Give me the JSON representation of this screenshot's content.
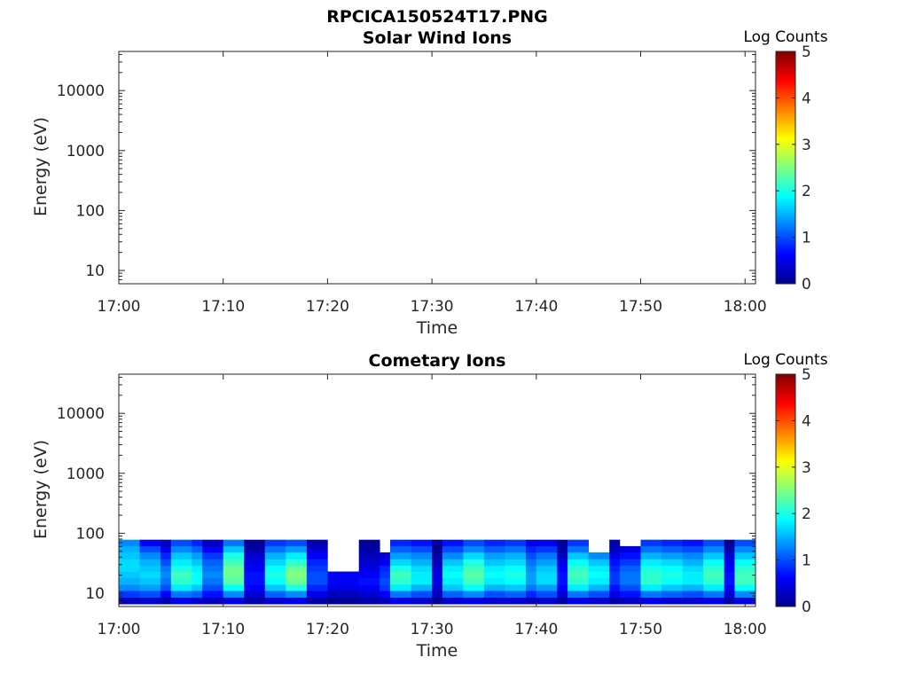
{
  "figure": {
    "title": "RPCICA150524T17.PNG"
  },
  "chart_data": [
    {
      "type": "heatmap",
      "title": "Solar Wind Ions",
      "xlabel": "Time",
      "ylabel": "Energy (eV)",
      "x_ticks": [
        "17:00",
        "17:10",
        "17:20",
        "17:30",
        "17:40",
        "17:50",
        "18:00"
      ],
      "x_range": [
        "17:00",
        "18:01"
      ],
      "y_ticks": [
        "10",
        "100",
        "1000",
        "10000"
      ],
      "y_scale": "log",
      "y_range": [
        6,
        45000
      ],
      "colorbar": {
        "label": "Log Counts",
        "ticks": [
          "0",
          "1",
          "2",
          "3",
          "4",
          "5"
        ],
        "range": [
          0,
          5
        ],
        "colormap": "jet"
      },
      "bins": []
    },
    {
      "type": "heatmap",
      "title": "Cometary Ions",
      "xlabel": "Time",
      "ylabel": "Energy (eV)",
      "x_ticks": [
        "17:00",
        "17:10",
        "17:20",
        "17:30",
        "17:40",
        "17:50",
        "18:00"
      ],
      "x_range": [
        "17:00",
        "18:01"
      ],
      "y_ticks": [
        "10",
        "100",
        "1000",
        "10000"
      ],
      "y_scale": "log",
      "y_range": [
        6,
        45000
      ],
      "colorbar": {
        "label": "Log Counts",
        "ticks": [
          "0",
          "1",
          "2",
          "3",
          "4",
          "5"
        ],
        "range": [
          0,
          5
        ],
        "colormap": "jet"
      },
      "energy_bins": [
        6.6,
        8.5,
        11,
        14,
        18,
        23,
        29,
        37,
        48,
        61,
        78
      ],
      "bins": [
        {
          "start": "17:00",
          "end": "17:02",
          "top": 78,
          "values": [
            0.3,
            0.9,
            1.3,
            1.5,
            1.6,
            1.7,
            1.7,
            1.6,
            1.5,
            1.3
          ]
        },
        {
          "start": "17:02",
          "end": "17:04",
          "top": 78,
          "values": [
            0.4,
            1.0,
            1.4,
            1.6,
            1.7,
            1.6,
            1.5,
            1.3,
            1.0,
            0.6
          ]
        },
        {
          "start": "17:04",
          "end": "17:05",
          "top": 78,
          "values": [
            0.2,
            0.6,
            1.0,
            1.2,
            1.3,
            1.2,
            1.0,
            0.8,
            0.5,
            0.3
          ]
        },
        {
          "start": "17:05",
          "end": "17:07",
          "top": 78,
          "values": [
            0.5,
            1.2,
            1.8,
            2.1,
            2.2,
            2.0,
            1.8,
            1.6,
            1.3,
            1.0
          ]
        },
        {
          "start": "17:07",
          "end": "17:08",
          "top": 78,
          "values": [
            0.4,
            1.1,
            1.6,
            1.9,
            1.9,
            1.8,
            1.6,
            1.4,
            1.1,
            0.8
          ]
        },
        {
          "start": "17:08",
          "end": "17:10",
          "top": 78,
          "values": [
            0.3,
            0.7,
            1.0,
            1.2,
            1.3,
            1.2,
            1.1,
            0.9,
            0.6,
            0.3
          ]
        },
        {
          "start": "17:10",
          "end": "17:12",
          "top": 78,
          "values": [
            0.5,
            1.3,
            1.9,
            2.3,
            2.4,
            2.4,
            2.2,
            2.0,
            1.6,
            1.2
          ]
        },
        {
          "start": "17:12",
          "end": "17:14",
          "top": 78,
          "values": [
            0.2,
            0.4,
            0.6,
            0.7,
            0.7,
            0.6,
            0.5,
            0.4,
            0.2,
            0.1
          ]
        },
        {
          "start": "17:14",
          "end": "17:16",
          "top": 78,
          "values": [
            0.4,
            1.1,
            1.6,
            1.9,
            2.0,
            1.9,
            1.7,
            1.5,
            1.2,
            0.9
          ]
        },
        {
          "start": "17:16",
          "end": "17:18",
          "top": 78,
          "values": [
            0.5,
            1.3,
            2.0,
            2.4,
            2.5,
            2.4,
            2.1,
            1.8,
            1.4,
            1.0
          ]
        },
        {
          "start": "17:18",
          "end": "17:20",
          "top": 78,
          "values": [
            0.2,
            0.5,
            0.8,
            1.0,
            1.0,
            0.9,
            0.8,
            0.6,
            0.4,
            0.2
          ]
        },
        {
          "start": "17:20",
          "end": "17:23",
          "top": 25,
          "values": [
            0.1,
            0.3,
            0.5,
            0.6,
            0.6,
            0.5,
            0.4,
            0.3,
            0.2,
            0.1
          ]
        },
        {
          "start": "17:23",
          "end": "17:25",
          "top": 78,
          "values": [
            0.2,
            0.4,
            0.6,
            0.7,
            0.6,
            0.5,
            0.4,
            0.3,
            0.2,
            0.1
          ]
        },
        {
          "start": "17:25",
          "end": "17:26",
          "top": 55,
          "values": [
            0.3,
            0.6,
            0.9,
            1.0,
            0.9,
            0.8,
            0.6,
            0.4,
            0.3,
            0.2
          ]
        },
        {
          "start": "17:26",
          "end": "17:28",
          "top": 78,
          "values": [
            0.5,
            1.2,
            1.8,
            2.1,
            2.2,
            2.0,
            1.7,
            1.4,
            1.1,
            0.8
          ]
        },
        {
          "start": "17:28",
          "end": "17:30",
          "top": 78,
          "values": [
            0.4,
            1.0,
            1.5,
            1.8,
            1.8,
            1.7,
            1.5,
            1.3,
            1.0,
            0.7
          ]
        },
        {
          "start": "17:30",
          "end": "17:31",
          "top": 78,
          "values": [
            0.1,
            0.3,
            0.4,
            0.5,
            0.5,
            0.4,
            0.3,
            0.2,
            0.1,
            0.1
          ]
        },
        {
          "start": "17:31",
          "end": "17:33",
          "top": 78,
          "values": [
            0.4,
            1.1,
            1.6,
            1.8,
            1.9,
            1.8,
            1.6,
            1.3,
            1.0,
            0.7
          ]
        },
        {
          "start": "17:33",
          "end": "17:35",
          "top": 78,
          "values": [
            0.5,
            1.3,
            1.9,
            2.2,
            2.3,
            2.2,
            2.0,
            1.7,
            1.3,
            1.0
          ]
        },
        {
          "start": "17:35",
          "end": "17:37",
          "top": 78,
          "values": [
            0.4,
            1.0,
            1.5,
            1.8,
            1.9,
            1.8,
            1.6,
            1.4,
            1.1,
            0.8
          ]
        },
        {
          "start": "17:37",
          "end": "17:39",
          "top": 78,
          "values": [
            0.4,
            1.1,
            1.6,
            1.9,
            2.0,
            1.9,
            1.7,
            1.5,
            1.2,
            0.9
          ]
        },
        {
          "start": "17:39",
          "end": "17:40",
          "top": 78,
          "values": [
            0.3,
            0.8,
            1.2,
            1.4,
            1.4,
            1.3,
            1.2,
            1.0,
            0.8,
            0.5
          ]
        },
        {
          "start": "17:40",
          "end": "17:42",
          "top": 78,
          "values": [
            0.4,
            1.0,
            1.4,
            1.7,
            1.7,
            1.6,
            1.4,
            1.2,
            0.9,
            0.6
          ]
        },
        {
          "start": "17:42",
          "end": "17:43",
          "top": 78,
          "values": [
            0.2,
            0.4,
            0.6,
            0.7,
            0.7,
            0.6,
            0.5,
            0.3,
            0.2,
            0.1
          ]
        },
        {
          "start": "17:43",
          "end": "17:45",
          "top": 78,
          "values": [
            0.5,
            1.2,
            1.8,
            2.1,
            2.2,
            2.1,
            1.9,
            1.6,
            1.2,
            0.9
          ]
        },
        {
          "start": "17:45",
          "end": "17:47",
          "top": 50,
          "values": [
            0.4,
            1.0,
            1.5,
            1.8,
            1.9,
            1.8,
            1.6,
            1.3,
            1.0,
            0.7
          ]
        },
        {
          "start": "17:47",
          "end": "17:48",
          "top": 78,
          "values": [
            0.2,
            0.5,
            0.7,
            0.9,
            0.9,
            0.8,
            0.7,
            0.5,
            0.3,
            0.2
          ]
        },
        {
          "start": "17:48",
          "end": "17:50",
          "top": 70,
          "values": [
            0.3,
            0.7,
            1.0,
            1.2,
            1.2,
            1.1,
            0.9,
            0.7,
            0.5,
            0.3
          ]
        },
        {
          "start": "17:50",
          "end": "17:52",
          "top": 78,
          "values": [
            0.5,
            1.2,
            1.8,
            2.1,
            2.1,
            2.0,
            1.8,
            1.5,
            1.2,
            0.9
          ]
        },
        {
          "start": "17:52",
          "end": "17:54",
          "top": 78,
          "values": [
            0.4,
            1.1,
            1.6,
            1.9,
            2.0,
            1.9,
            1.7,
            1.4,
            1.1,
            0.8
          ]
        },
        {
          "start": "17:54",
          "end": "17:56",
          "top": 78,
          "values": [
            0.4,
            1.0,
            1.5,
            1.8,
            1.8,
            1.7,
            1.5,
            1.3,
            1.0,
            0.7
          ]
        },
        {
          "start": "17:56",
          "end": "17:58",
          "top": 78,
          "values": [
            0.5,
            1.2,
            1.8,
            2.1,
            2.2,
            2.1,
            1.9,
            1.6,
            1.3,
            1.0
          ]
        },
        {
          "start": "17:58",
          "end": "17:59",
          "top": 78,
          "values": [
            0.2,
            0.4,
            0.6,
            0.7,
            0.7,
            0.6,
            0.5,
            0.4,
            0.2,
            0.1
          ]
        },
        {
          "start": "17:59",
          "end": "18:01",
          "top": 78,
          "values": [
            0.5,
            1.3,
            1.9,
            2.2,
            2.2,
            2.1,
            1.9,
            1.6,
            1.3,
            1.0
          ]
        }
      ]
    }
  ]
}
